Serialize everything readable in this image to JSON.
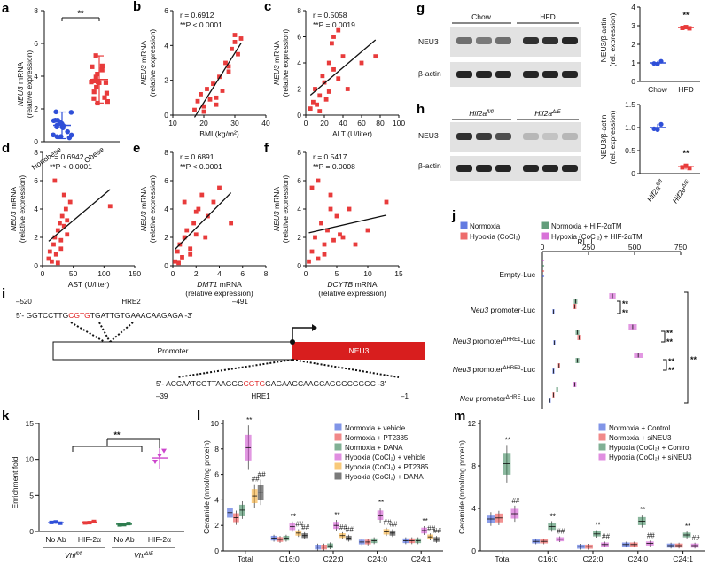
{
  "panels": {
    "a": {
      "label": "a",
      "ylabel_gene": "NEU3",
      "ylabel_rest": " mRNA",
      "ylabel2": "(relative expression)",
      "ticks": [
        "0",
        "2",
        "4",
        "6",
        "8"
      ],
      "groups": [
        "Nonobese",
        "Obese"
      ],
      "sig": "**"
    },
    "b": {
      "label": "b",
      "r": "r = 0.6912",
      "p": "**P < 0.0001",
      "ylabel_gene": "NEU3",
      "ylabel_rest": " mRNA",
      "ylabel2": "(relative expression)",
      "xlabel": "BMI (kg/m²)",
      "yticks": [
        "0",
        "2",
        "4",
        "6"
      ],
      "xticks": [
        "10",
        "20",
        "30",
        "40"
      ]
    },
    "c": {
      "label": "c",
      "r": "r = 0.5058",
      "p": "**P = 0.0019",
      "ylabel_gene": "NEU3",
      "ylabel_rest": " mRNA",
      "ylabel2": "(relative expression)",
      "xlabel": "ALT (U/liter)",
      "yticks": [
        "0",
        "2",
        "4",
        "6",
        "8"
      ],
      "xticks": [
        "0",
        "20",
        "40",
        "60",
        "80",
        "100"
      ]
    },
    "d": {
      "label": "d",
      "r": "r = 0.6942",
      "p": "**P < 0.0001",
      "ylabel_gene": "NEU3",
      "ylabel_rest": " mRNA",
      "ylabel2": "(relative expression)",
      "xlabel": "AST (U/liter)",
      "yticks": [
        "0",
        "2",
        "4",
        "6",
        "8"
      ],
      "xticks": [
        "0",
        "50",
        "100",
        "150"
      ]
    },
    "e": {
      "label": "e",
      "r": "r = 0.6891",
      "p": "**P < 0.0001",
      "ylabel_gene": "NEU3",
      "ylabel_rest": " mRNA",
      "ylabel2": "(relative expression)",
      "xlabel_gene": "DMT1",
      "xlabel_rest": " mRNA",
      "xlabel2": "(relative expression)",
      "yticks": [
        "0",
        "2",
        "4",
        "6",
        "8"
      ],
      "xticks": [
        "0",
        "2",
        "4",
        "6",
        "8"
      ]
    },
    "f": {
      "label": "f",
      "r": "r = 0.5417",
      "p": "**P = 0.0008",
      "ylabel_gene": "NEU3",
      "ylabel_rest": " mRNA",
      "ylabel2": "(relative expression)",
      "xlabel_gene": "DCYTB",
      "xlabel_rest": " mRNA",
      "xlabel2": "(relative expression)",
      "yticks": [
        "0",
        "2",
        "4",
        "6",
        "8"
      ],
      "xticks": [
        "0",
        "5",
        "10",
        "15"
      ]
    },
    "g": {
      "label": "g",
      "lanes": [
        "Chow",
        "HFD"
      ],
      "bands": [
        "NEU3",
        "β-actin"
      ],
      "ylabel": "NEU3/β-actin",
      "ylabel2": "(rel. expression)",
      "yticks": [
        "0",
        "1",
        "2",
        "3",
        "4"
      ],
      "groups": [
        "Chow",
        "HFD"
      ],
      "sig": "**"
    },
    "h": {
      "label": "h",
      "lane1": "Hif2a",
      "lane1sup": "fl/fl",
      "lane2": "Hif2a",
      "lane2sup": "ΔIE",
      "bands": [
        "NEU3",
        "β-actin"
      ],
      "ylabel": "NEU3/β-actin",
      "ylabel2": "(rel. expression)",
      "yticks": [
        "0",
        "0.5",
        "1.0",
        "1.5"
      ],
      "sig": "**"
    },
    "i": {
      "label": "i",
      "hre2_left": "–520",
      "hre2_name": "HRE2",
      "hre2_right": "–491",
      "seq2_a": "5'- GGTCCTTG",
      "seq2_b": "CGTG",
      "seq2_c": "TGATTGTGAAACAAGAGA -3'",
      "promoter": "Promoter",
      "gene": "NEU3",
      "seq1_a": "5'- ACCAATCGTTAAGGG",
      "seq1_b": "CGTG",
      "seq1_c": "GAGAAGCAAGCAGGGCGGGC -3'",
      "hre1_left": "–39",
      "hre1_name": "HRE1",
      "hre1_right": "–1"
    },
    "j": {
      "label": "j",
      "legend": [
        "Normoxia",
        "Hypoxia (CoCl₂)",
        "Normoxia + HIF-2αTM",
        "Hypoxia (CoCl₂) + HIF-2αTM"
      ],
      "axis_title": "RLU",
      "xticks": [
        "0",
        "250",
        "500",
        "750"
      ],
      "rows": [
        "Empty-Luc",
        "Neu3 promoter-Luc",
        "Neu3 promoterΔHRE1-Luc",
        "Neu3 promoterΔHRE2-Luc",
        "Neu promoterΔHRE-Luc"
      ]
    },
    "k": {
      "label": "k",
      "ylabel": "Enrichment fold",
      "yticks": [
        "0",
        "5",
        "10",
        "15"
      ],
      "groups": [
        "No Ab",
        "HIF-2α",
        "No Ab",
        "HIF-2α"
      ],
      "geno1": "Vhl",
      "geno1sup": "fl/fl",
      "geno2": "Vhl",
      "geno2sup": "ΔIE",
      "sig": "**"
    },
    "l": {
      "label": "l",
      "ylabel": "Ceramide (nmol/mg protein)",
      "yticks": [
        "0",
        "2",
        "4",
        "6",
        "8",
        "10"
      ],
      "categories": [
        "Total",
        "C16:0",
        "C22:0",
        "C24:0",
        "C24:1"
      ],
      "legend": [
        "Normoxia + vehicle",
        "Normoxia + PT2385",
        "Normoxia + DANA",
        "Hypoxia (CoCl₂) + vehicle",
        "Hypoxia (CoCl₂) + PT2385",
        "Hypoxia (CoCl₂) + DANA"
      ]
    },
    "m": {
      "label": "m",
      "ylabel": "Ceramide (nmol/mg protein)",
      "yticks": [
        "0",
        "4",
        "8",
        "12"
      ],
      "categories": [
        "Total",
        "C16:0",
        "C22:0",
        "C24:0",
        "C24:1"
      ],
      "legend": [
        "Normoxia + Control",
        "Normoxia + siNEU3",
        "Hypoxia (CoCl₂) + Control",
        "Hypoxia (CoCl₂) + siNEU3"
      ]
    }
  },
  "colors": {
    "blue": "#2f4fd8",
    "red": "#e83b3b",
    "green": "#2e7d4f",
    "magenta": "#cc44cc",
    "orange": "#f5a623",
    "black": "#222222"
  },
  "chart_data": [
    {
      "type": "scatter",
      "panel": "a",
      "categories": [
        "Nonobese",
        "Obese"
      ],
      "means": [
        1.0,
        3.8
      ],
      "ylim": [
        0,
        8
      ]
    },
    {
      "type": "scatter",
      "panel": "b",
      "xlabel": "BMI (kg/m²)",
      "ylim": [
        0,
        6
      ],
      "xlim": [
        10,
        40
      ],
      "x": [
        17,
        18,
        19,
        20,
        21,
        22,
        23,
        24,
        25,
        26,
        27,
        28,
        29,
        30,
        31,
        32,
        20,
        24,
        28,
        30
      ],
      "y": [
        0.3,
        0.8,
        1.2,
        0.5,
        1.5,
        0.9,
        1.8,
        0.6,
        2.2,
        1.4,
        3.0,
        2.5,
        3.8,
        4.2,
        3.5,
        4.4,
        0.2,
        1.0,
        2.8,
        4.6
      ]
    },
    {
      "type": "scatter",
      "panel": "c",
      "xlabel": "ALT (U/liter)",
      "ylim": [
        0,
        8
      ],
      "xlim": [
        0,
        100
      ],
      "x": [
        5,
        8,
        10,
        12,
        15,
        18,
        20,
        22,
        25,
        28,
        30,
        35,
        40,
        45,
        60,
        75,
        15,
        25,
        30,
        35
      ],
      "y": [
        0.5,
        1.0,
        2.0,
        0.8,
        1.5,
        3.0,
        2.5,
        1.2,
        4.0,
        5.5,
        3.5,
        6.5,
        4.5,
        2.0,
        4.0,
        4.5,
        0.3,
        1.8,
        6.0,
        2.8
      ]
    },
    {
      "type": "scatter",
      "panel": "d",
      "xlabel": "AST (U/liter)",
      "ylim": [
        0,
        8
      ],
      "xlim": [
        0,
        150
      ],
      "x": [
        10,
        12,
        15,
        18,
        20,
        22,
        25,
        28,
        30,
        32,
        35,
        38,
        40,
        45,
        110,
        20,
        25,
        30,
        35,
        40
      ],
      "y": [
        0.5,
        1.0,
        0.3,
        1.5,
        2.0,
        0.8,
        2.5,
        3.0,
        1.2,
        3.5,
        2.8,
        4.0,
        3.2,
        4.5,
        4.2,
        6.0,
        0.2,
        1.8,
        5.0,
        2.2
      ]
    },
    {
      "type": "scatter",
      "panel": "e",
      "xlabel": "DMT1 mRNA (relative expression)",
      "ylim": [
        0,
        8
      ],
      "xlim": [
        0,
        8
      ],
      "x": [
        0.2,
        0.4,
        0.6,
        0.8,
        1.0,
        1.2,
        1.5,
        1.8,
        2.0,
        2.2,
        2.5,
        3.0,
        3.5,
        4.0,
        5.0,
        0.5,
        1.0,
        1.5,
        2.0,
        2.8
      ],
      "y": [
        0.3,
        1.0,
        1.5,
        0.6,
        2.0,
        2.5,
        1.2,
        3.0,
        2.2,
        4.0,
        5.0,
        3.5,
        4.5,
        5.5,
        3.0,
        0.2,
        4.5,
        0.8,
        3.8,
        2.0
      ]
    },
    {
      "type": "scatter",
      "panel": "f",
      "xlabel": "DCYTB mRNA (relative expression)",
      "ylim": [
        0,
        8
      ],
      "xlim": [
        0,
        15
      ],
      "x": [
        0.5,
        1.0,
        1.5,
        2.0,
        2.5,
        3.0,
        3.5,
        4.0,
        4.5,
        5.0,
        6.0,
        7.0,
        8.0,
        10.0,
        13.0,
        1.0,
        2.0,
        3.0,
        4.0,
        5.5
      ],
      "y": [
        0.3,
        1.0,
        2.0,
        0.5,
        3.0,
        1.5,
        2.5,
        4.0,
        1.8,
        3.5,
        2.0,
        4.0,
        1.5,
        2.5,
        4.5,
        5.5,
        6.0,
        0.8,
        5.0,
        2.2
      ]
    },
    {
      "type": "scatter",
      "panel": "g",
      "categories": [
        "Chow",
        "HFD"
      ],
      "means": [
        1.0,
        2.9
      ],
      "ylim": [
        0,
        4
      ]
    },
    {
      "type": "scatter",
      "panel": "h",
      "categories": [
        "Hif2a fl/fl",
        "Hif2a ΔIE"
      ],
      "means": [
        1.0,
        0.15
      ],
      "ylim": [
        0,
        1.5
      ]
    },
    {
      "type": "bar",
      "panel": "j",
      "orientation": "horizontal",
      "categories": [
        "Empty-Luc",
        "Neu3 promoter-Luc",
        "Neu3 promoterΔHRE1-Luc",
        "Neu3 promoterΔHRE2-Luc",
        "Neu promoterΔHRE-Luc"
      ],
      "series": [
        {
          "name": "Normoxia",
          "values": [
            5,
            60,
            65,
            60,
            40
          ]
        },
        {
          "name": "Hypoxia (CoCl₂)",
          "values": [
            5,
            175,
            200,
            90,
            60
          ]
        },
        {
          "name": "Normoxia + HIF-2αTM",
          "values": [
            5,
            180,
            190,
            190,
            80
          ]
        },
        {
          "name": "Hypoxia (CoCl₂) + HIF-2αTM",
          "values": [
            5,
            380,
            490,
            520,
            175
          ]
        }
      ],
      "xlim": [
        0,
        750
      ]
    },
    {
      "type": "scatter",
      "panel": "k",
      "categories": [
        "No Ab",
        "HIF-2α",
        "No Ab",
        "HIF-2α"
      ],
      "means": [
        1.2,
        1.3,
        1.0,
        10.2
      ],
      "ylim": [
        0,
        15
      ]
    },
    {
      "type": "bar",
      "panel": "l",
      "categories": [
        "Total",
        "C16:0",
        "C22:0",
        "C24:0",
        "C24:1"
      ],
      "series": [
        {
          "name": "Normoxia + vehicle",
          "values": [
            3.0,
            1.0,
            0.3,
            0.7,
            0.8
          ]
        },
        {
          "name": "Normoxia + PT2385",
          "values": [
            2.6,
            0.9,
            0.3,
            0.7,
            0.8
          ]
        },
        {
          "name": "Normoxia + DANA",
          "values": [
            3.2,
            1.0,
            0.4,
            0.8,
            0.8
          ]
        },
        {
          "name": "Hypoxia (CoCl₂) + vehicle",
          "values": [
            8.1,
            1.9,
            2.0,
            2.8,
            1.6
          ]
        },
        {
          "name": "Hypoxia (CoCl₂) + PT2385",
          "values": [
            4.3,
            1.4,
            1.2,
            1.5,
            1.1
          ]
        },
        {
          "name": "Hypoxia (CoCl₂) + DANA",
          "values": [
            4.6,
            1.2,
            1.0,
            1.4,
            0.9
          ]
        }
      ],
      "ylim": [
        0,
        10
      ]
    },
    {
      "type": "bar",
      "panel": "m",
      "categories": [
        "Total",
        "C16:0",
        "C22:0",
        "C24:0",
        "C24:1"
      ],
      "series": [
        {
          "name": "Normoxia + Control",
          "values": [
            3.0,
            0.9,
            0.4,
            0.6,
            0.5
          ]
        },
        {
          "name": "Normoxia + siNEU3",
          "values": [
            3.1,
            0.9,
            0.4,
            0.6,
            0.5
          ]
        },
        {
          "name": "Hypoxia (CoCl₂) + Control",
          "values": [
            8.2,
            2.3,
            1.6,
            2.8,
            1.5
          ]
        },
        {
          "name": "Hypoxia (CoCl₂) + siNEU3",
          "values": [
            3.5,
            1.1,
            0.6,
            0.7,
            0.5
          ]
        }
      ],
      "ylim": [
        0,
        12
      ]
    }
  ]
}
